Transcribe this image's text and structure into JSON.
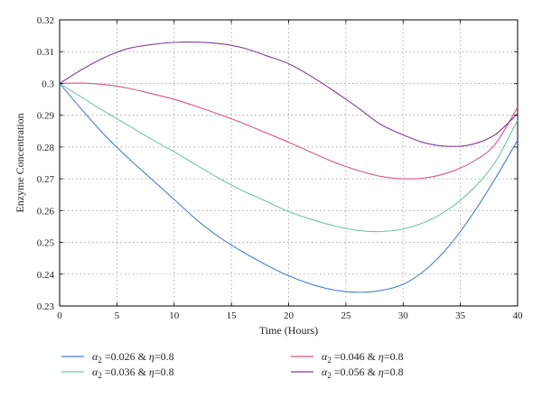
{
  "chart_data": {
    "type": "line",
    "title": "",
    "xlabel": "Time (Hours)",
    "ylabel": "Enzyme Concentration",
    "xlim": [
      0,
      40
    ],
    "ylim": [
      0.23,
      0.32
    ],
    "xticks": [
      0,
      5,
      10,
      15,
      20,
      25,
      30,
      35,
      40
    ],
    "xtick_labels": [
      "0",
      "5",
      "10",
      "15",
      "20",
      "25",
      "30",
      "35",
      "40"
    ],
    "yticks": [
      0.23,
      0.24,
      0.25,
      0.26,
      0.27,
      0.28,
      0.29,
      0.3,
      0.31,
      0.32
    ],
    "ytick_labels": [
      "0.23",
      "0.24",
      "0.25",
      "0.26",
      "0.27",
      "0.28",
      "0.29",
      "0.3",
      "0.31",
      "0.32"
    ],
    "grid": true,
    "legend_position": "bottom",
    "series": [
      {
        "label_parts": {
          "symbol": "α",
          "sub": "2",
          "value": "=0.026",
          "sep": " & ",
          "eta": "η",
          "eta_value": "=0.8"
        },
        "color": "#4a7fcf",
        "x": [
          0,
          2,
          4,
          6,
          8,
          10,
          12,
          14,
          16,
          18,
          20,
          22,
          24,
          26,
          28,
          30,
          32,
          34,
          36,
          38,
          40
        ],
        "values": [
          0.3,
          0.2915,
          0.2835,
          0.2765,
          0.27,
          0.2635,
          0.257,
          0.2515,
          0.247,
          0.243,
          0.2395,
          0.2368,
          0.235,
          0.2343,
          0.2348,
          0.2368,
          0.2415,
          0.2488,
          0.2585,
          0.2698,
          0.2822
        ]
      },
      {
        "label_parts": {
          "symbol": "α",
          "sub": "2",
          "value": "=0.036",
          "sep": " & ",
          "eta": "η",
          "eta_value": "=0.8"
        },
        "color": "#74c3a6",
        "x": [
          0,
          2,
          4,
          6,
          8,
          10,
          12,
          14,
          16,
          18,
          20,
          22,
          24,
          26,
          28,
          30,
          32,
          34,
          36,
          38,
          40
        ],
        "values": [
          0.3,
          0.2955,
          0.291,
          0.2868,
          0.2825,
          0.2785,
          0.2742,
          0.27,
          0.2662,
          0.263,
          0.2597,
          0.2572,
          0.2552,
          0.2538,
          0.2534,
          0.2542,
          0.2565,
          0.2605,
          0.2665,
          0.275,
          0.2885
        ]
      },
      {
        "label_parts": {
          "symbol": "α",
          "sub": "2",
          "value": "=0.046",
          "sep": " & ",
          "eta": "η",
          "eta_value": "=0.8"
        },
        "color": "#d6558a",
        "x": [
          0,
          2,
          4,
          6,
          8,
          10,
          12,
          14,
          16,
          18,
          20,
          22,
          24,
          26,
          28,
          30,
          32,
          34,
          36,
          38,
          40
        ],
        "values": [
          0.3,
          0.3001,
          0.2996,
          0.2985,
          0.2968,
          0.295,
          0.2927,
          0.2902,
          0.2875,
          0.2845,
          0.2815,
          0.2783,
          0.2752,
          0.2727,
          0.2708,
          0.27,
          0.2703,
          0.272,
          0.2752,
          0.2807,
          0.2925
        ]
      },
      {
        "label_parts": {
          "symbol": "α",
          "sub": "2",
          "value": "=0.056",
          "sep": " & ",
          "eta": "η",
          "eta_value": "=0.8"
        },
        "color": "#7e3f98",
        "x": [
          0,
          2,
          4,
          6,
          8,
          10,
          12,
          14,
          16,
          18,
          20,
          22,
          24,
          26,
          28,
          30,
          32,
          34,
          36,
          38,
          40
        ],
        "values": [
          0.3,
          0.3045,
          0.3083,
          0.311,
          0.3122,
          0.3129,
          0.313,
          0.3125,
          0.3112,
          0.3088,
          0.3062,
          0.3022,
          0.2975,
          0.2925,
          0.2872,
          0.2838,
          0.2812,
          0.2802,
          0.2808,
          0.2838,
          0.2905
        ]
      }
    ]
  }
}
